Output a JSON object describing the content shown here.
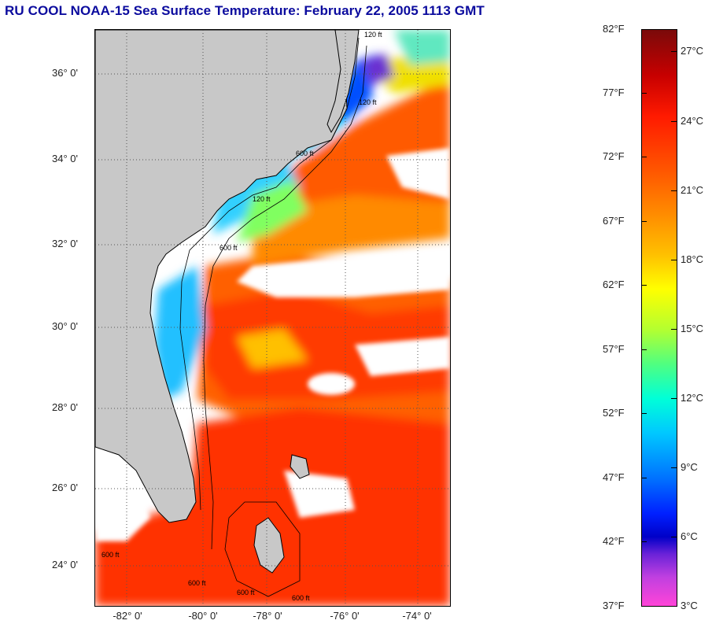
{
  "title": "RU COOL  NOAA-15  Sea Surface Temperature:  February 22, 2005 1113 GMT",
  "map": {
    "lat_labels": [
      "36° 0'",
      "34° 0'",
      "32° 0'",
      "30° 0'",
      "28° 0'",
      "26° 0'",
      "24° 0'"
    ],
    "lon_labels": [
      "-82° 0'",
      "-80° 0'",
      "-78° 0'",
      "-76° 0'",
      "-74° 0'"
    ],
    "contour_labels": [
      "120 ft",
      "120 ft",
      "600 ft",
      "120 ft",
      "600 ft",
      "600 ft",
      "600 ft",
      "600 ft",
      "600 ft"
    ],
    "colors": {
      "land": "#c8c8c8",
      "cloud": "#ffffff",
      "cold": "#1e6cff",
      "cool": "#00d0ff",
      "mild": "#f2e600",
      "warm": "#ff6a00",
      "hot": "#ff2a00"
    }
  },
  "colorbar": {
    "fahrenheit": [
      "82°F",
      "77°F",
      "72°F",
      "67°F",
      "62°F",
      "57°F",
      "52°F",
      "47°F",
      "42°F",
      "37°F"
    ],
    "celsius": [
      "27°C",
      "24°C",
      "21°C",
      "18°C",
      "15°C",
      "12°C",
      "9°C",
      "6°C",
      "3°C"
    ]
  }
}
